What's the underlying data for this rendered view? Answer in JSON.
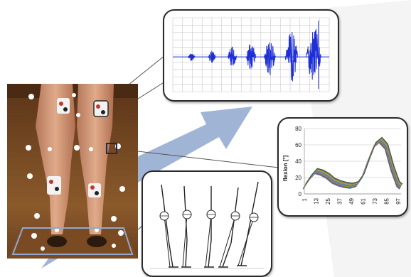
{
  "figure": {
    "description_panels": [
      "emg",
      "angle",
      "skeleton",
      "photo"
    ]
  },
  "emg_panel": {
    "bursts": [
      0.12,
      0.18,
      0.32,
      0.42,
      0.58,
      0.74,
      0.95
    ],
    "trace_color": "#1f2fd6"
  },
  "angle_chart": {
    "ylabel": "flexion [°]",
    "ytick_labels": [
      "0",
      "20",
      "40",
      "60",
      "80"
    ],
    "xtick_labels": [
      "1",
      "13",
      "25",
      "37",
      "49",
      "61",
      "73",
      "85",
      "97"
    ],
    "series_colors": [
      "#3a6fc4",
      "#c0392b",
      "#6aa84f",
      "#7e57c2",
      "#2aa3b8",
      "#e08a2e",
      "#6d8a2a",
      "#555555"
    ]
  },
  "chart_data": {
    "type": "line",
    "title": "",
    "xlabel": "",
    "ylabel": "flexion [°]",
    "ylim": [
      0,
      80
    ],
    "x": [
      1,
      13,
      25,
      37,
      49,
      61,
      73,
      85,
      97
    ],
    "series": [
      {
        "values": [
          9,
          28,
          24,
          14,
          10,
          13,
          40,
          66,
          10
        ]
      }
    ],
    "grid": true
  },
  "skeleton_panel": {
    "figure_count": 5
  },
  "colors": {
    "arrow": "#8fa8cf",
    "panel_border": "#2a2a2a",
    "skin": "#d9a17f",
    "floor": "#7a4a22"
  }
}
